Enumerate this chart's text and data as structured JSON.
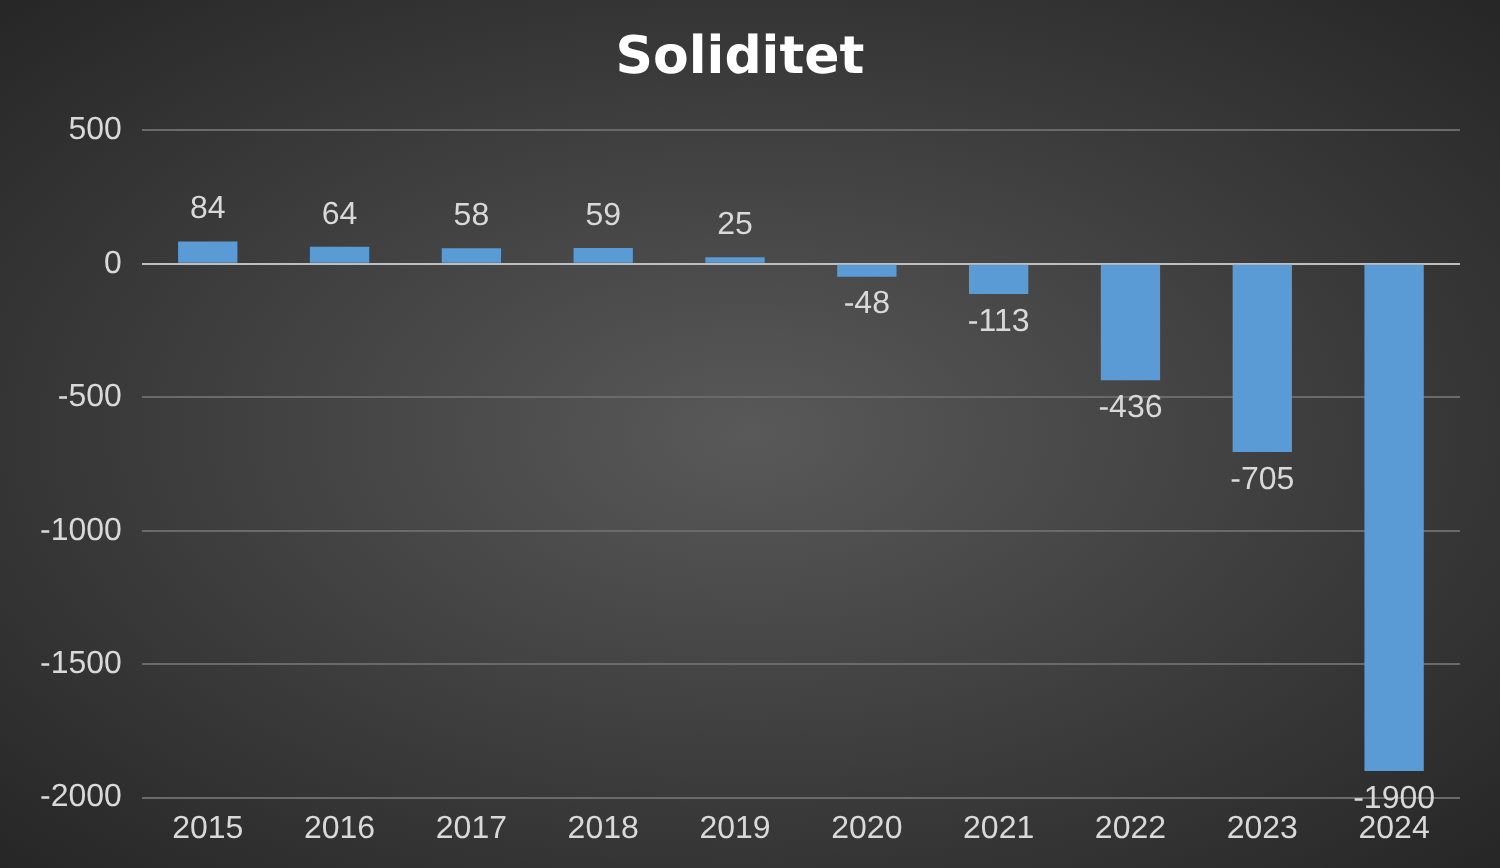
{
  "chart_data": {
    "type": "bar",
    "title": "Soliditet",
    "categories": [
      "2015",
      "2016",
      "2017",
      "2018",
      "2019",
      "2020",
      "2021",
      "2022",
      "2023",
      "2024"
    ],
    "values": [
      84,
      64,
      58,
      59,
      25,
      -48,
      -113,
      -436,
      -705,
      -1900
    ],
    "color": "#5b9bd5",
    "ylim": [
      -2000,
      500
    ],
    "yticks": [
      -2000,
      -1500,
      -1000,
      -500,
      0,
      500
    ],
    "grid": "y",
    "legend": false,
    "data_labels": true
  }
}
